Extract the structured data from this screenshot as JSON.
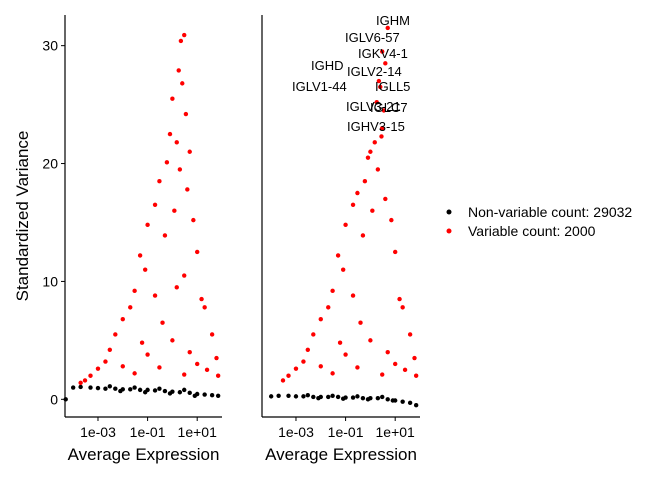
{
  "chart_data": [
    {
      "type": "scatter",
      "xlabel": "Average Expression",
      "ylabel": "Standardized Variance",
      "log_x": true,
      "xlim": [
        4.68e-05,
        100
      ],
      "ylim": [
        -1.5,
        32.6
      ],
      "xticks": [
        {
          "value": 0.001,
          "label": "1e-03"
        },
        {
          "value": 0.1,
          "label": "1e-01"
        },
        {
          "value": 10,
          "label": "1e+01"
        }
      ],
      "yticks": [
        0,
        10,
        20,
        30
      ],
      "legend": "right",
      "series": [
        {
          "name": "Non-variable count: 29032",
          "color": "#000000",
          "x": [
            5e-05,
            0.0001,
            0.0002,
            0.0005,
            0.001,
            0.002,
            0.005,
            0.01,
            0.02,
            0.05,
            0.1,
            0.2,
            0.5,
            1,
            2,
            5,
            10,
            20,
            40,
            70,
            0.003,
            0.03,
            0.3,
            3,
            0.008,
            0.08,
            0.8,
            8
          ],
          "values": [
            0,
            1.0,
            1.05,
            1.0,
            0.95,
            0.9,
            0.9,
            0.85,
            0.85,
            0.8,
            0.8,
            0.75,
            0.7,
            0.65,
            0.6,
            0.55,
            0.45,
            0.4,
            0.35,
            0.3,
            1.1,
            1.0,
            0.9,
            0.8,
            0.7,
            0.6,
            0.5,
            0.3
          ]
        },
        {
          "name": "Variable count: 2000",
          "color": "#ff0000",
          "x": [
            3,
            2.2,
            1.8,
            2.5,
            1.0,
            3.5,
            0.8,
            1.5,
            5,
            0.6,
            2,
            0.3,
            4,
            0.2,
            1.2,
            7,
            0.1,
            0.5,
            10,
            0.05,
            0.08,
            3,
            15,
            0.03,
            0.02,
            0.2,
            1.5,
            20,
            0.01,
            0.4,
            0.005,
            40,
            60,
            0.003,
            0.06,
            0.002,
            0.001,
            0.0005,
            0.0003,
            0.0002,
            0.01,
            0.1,
            1,
            5,
            10,
            25,
            0.03,
            0.3,
            3,
            70
          ],
          "values": [
            30.9,
            30.4,
            27.9,
            26.8,
            25.5,
            24.2,
            22.5,
            21.8,
            21.0,
            20.1,
            19.5,
            18.5,
            17.8,
            16.5,
            16.0,
            15.2,
            14.8,
            13.9,
            12.5,
            12.2,
            11.0,
            10.5,
            8.5,
            9.2,
            7.8,
            8.8,
            9.5,
            7.8,
            6.8,
            6.5,
            5.5,
            5.5,
            3.5,
            4.2,
            4.8,
            3.2,
            2.6,
            2.0,
            1.6,
            1.4,
            2.8,
            3.8,
            5.0,
            4.0,
            3.0,
            2.5,
            2.2,
            2.7,
            2.1,
            2.0
          ]
        }
      ]
    },
    {
      "type": "scatter",
      "xlabel": "Average Expression",
      "log_x": true,
      "xlim": [
        4.27e-05,
        100
      ],
      "ylim": [
        -1.5,
        32.6
      ],
      "xticks": [
        {
          "value": 0.001,
          "label": "1e-03"
        },
        {
          "value": 0.1,
          "label": "1e-01"
        },
        {
          "value": 10,
          "label": "1e+01"
        }
      ],
      "labels": [
        "IGHM",
        "IGLV6-57",
        "IGKV4-1",
        "IGHD",
        "IGLV2-14",
        "IGLV1-44",
        "IGLL5",
        "IGLV3-21",
        "IGLC7",
        "IGHV3-15"
      ],
      "series": [
        {
          "color": "#000000",
          "x": [
            0.0001,
            0.0002,
            0.0005,
            0.001,
            0.002,
            0.005,
            0.01,
            0.02,
            0.05,
            0.1,
            0.2,
            0.5,
            1,
            2,
            5,
            10,
            20,
            40,
            70,
            0.003,
            0.03,
            0.3,
            3,
            0.008,
            0.08,
            0.8,
            8
          ],
          "values": [
            0.25,
            0.3,
            0.3,
            0.25,
            0.25,
            0.2,
            0.2,
            0.2,
            0.2,
            0.15,
            0.15,
            0.1,
            0.1,
            0.1,
            0.0,
            -0.1,
            -0.2,
            -0.3,
            -0.5,
            0.35,
            0.3,
            0.25,
            0.2,
            0.1,
            0.05,
            0.0,
            -0.1
          ]
        },
        {
          "color": "#ff0000",
          "x": [
            5,
            3,
            4,
            2.2,
            2.5,
            1.8,
            3.5,
            3,
            2.8,
            1.5,
            1.0,
            0.8,
            2,
            0.6,
            0.3,
            4,
            0.2,
            1.2,
            7,
            0.1,
            0.5,
            10,
            0.05,
            0.08,
            15,
            0.03,
            0.02,
            0.2,
            20,
            0.01,
            0.4,
            0.005,
            40,
            60,
            0.003,
            0.06,
            0.002,
            0.001,
            0.0005,
            0.0003,
            0.01,
            0.1,
            1,
            5,
            10,
            25,
            0.03,
            0.3,
            3,
            70
          ],
          "values": [
            31.5,
            29.5,
            28.5,
            27.0,
            26.5,
            25.2,
            24.5,
            23.0,
            22.3,
            21.8,
            21.0,
            20.5,
            19.5,
            18.5,
            17.5,
            17.0,
            16.5,
            16.0,
            15.2,
            14.8,
            13.9,
            12.5,
            12.2,
            11.0,
            8.5,
            9.2,
            7.8,
            8.8,
            7.8,
            6.8,
            6.5,
            5.5,
            5.5,
            3.5,
            4.2,
            4.8,
            3.2,
            2.6,
            2.0,
            1.6,
            2.8,
            3.8,
            5.0,
            4.0,
            3.0,
            2.5,
            2.2,
            2.7,
            2.1,
            2.0
          ]
        }
      ]
    }
  ]
}
